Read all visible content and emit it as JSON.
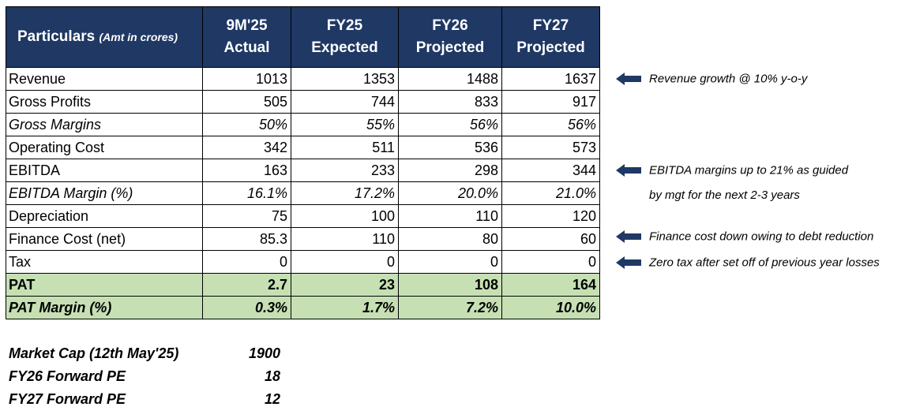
{
  "table": {
    "header": {
      "particulars": "Particulars",
      "particulars_note": "(Amt in crores)",
      "columns": [
        {
          "line1": "9M'25",
          "line2": "Actual"
        },
        {
          "line1": "FY25",
          "line2": "Expected"
        },
        {
          "line1": "FY26",
          "line2": "Projected"
        },
        {
          "line1": "FY27",
          "line2": "Projected"
        }
      ]
    },
    "rows": [
      {
        "label": "Revenue",
        "values": [
          "1013",
          "1353",
          "1488",
          "1637"
        ]
      },
      {
        "label": "Gross Profits",
        "values": [
          "505",
          "744",
          "833",
          "917"
        ]
      },
      {
        "label": "Gross Margins",
        "values": [
          "50%",
          "55%",
          "56%",
          "56%"
        ]
      },
      {
        "label": "Operating Cost",
        "values": [
          "342",
          "511",
          "536",
          "573"
        ]
      },
      {
        "label": "EBITDA",
        "values": [
          "163",
          "233",
          "298",
          "344"
        ]
      },
      {
        "label": "EBITDA Margin (%)",
        "values": [
          "16.1%",
          "17.2%",
          "20.0%",
          "21.0%"
        ]
      },
      {
        "label": "Depreciation",
        "values": [
          "75",
          "100",
          "110",
          "120"
        ]
      },
      {
        "label": "Finance Cost (net)",
        "values": [
          "85.3",
          "110",
          "80",
          "60"
        ]
      },
      {
        "label": "Tax",
        "values": [
          "0",
          "0",
          "0",
          "0"
        ]
      },
      {
        "label": "PAT",
        "values": [
          "2.7",
          "23",
          "108",
          "164"
        ]
      },
      {
        "label": "PAT Margin (%)",
        "values": [
          "0.3%",
          "1.7%",
          "7.2%",
          "10.0%"
        ]
      }
    ]
  },
  "notes": {
    "revenue": "Revenue growth @ 10% y-o-y",
    "ebitda_line1": "EBITDA margins up to 21% as guided",
    "ebitda_line2": "by mgt for the next 2-3 years",
    "finance": "Finance cost down owing to debt reduction",
    "tax": "Zero tax after set off of previous year losses"
  },
  "valuation": [
    {
      "label": "Market Cap (12th May'25)",
      "value": "1900"
    },
    {
      "label": "FY26 Forward PE",
      "value": "18"
    },
    {
      "label": "FY27 Forward PE",
      "value": "12"
    }
  ],
  "colors": {
    "header_bg": "#1f3864",
    "header_text": "#ffffff",
    "highlight_bg": "#c6e0b4",
    "arrow": "#1f3864"
  },
  "icons": {
    "note_arrow": "arrow-left-icon"
  }
}
